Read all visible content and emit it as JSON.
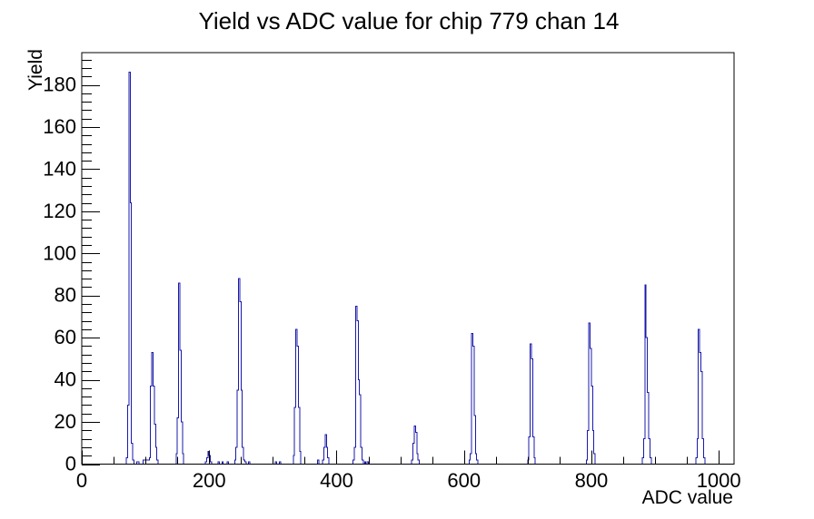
{
  "window": {
    "background": "#ffffff"
  },
  "chart_data": {
    "type": "bar",
    "style": "root-histogram-outline",
    "title": "Yield vs ADC value for chip 779 chan 14",
    "xlabel": "ADC value",
    "ylabel": "Yield",
    "line_color": "#1a1aab",
    "axis_color": "#000000",
    "grid": false,
    "legend": "none",
    "x_axis": {
      "min": 0,
      "max": 1024,
      "major_ticks": [
        0,
        200,
        400,
        600,
        800,
        1000
      ],
      "minor_step": 50
    },
    "y_axis": {
      "min": 0,
      "max": 195.3,
      "major_ticks": [
        0,
        20,
        40,
        60,
        80,
        100,
        120,
        140,
        160,
        180
      ],
      "minor_step": 4
    },
    "bin_width": 2,
    "bins": [
      [
        70,
        3
      ],
      [
        72,
        28
      ],
      [
        74,
        186
      ],
      [
        76,
        124
      ],
      [
        78,
        10
      ],
      [
        80,
        2
      ],
      [
        86,
        1
      ],
      [
        88,
        1
      ],
      [
        96,
        2
      ],
      [
        98,
        2
      ],
      [
        100,
        2
      ],
      [
        102,
        2
      ],
      [
        104,
        2
      ],
      [
        106,
        3
      ],
      [
        108,
        37
      ],
      [
        110,
        53
      ],
      [
        112,
        37
      ],
      [
        114,
        19
      ],
      [
        116,
        8
      ],
      [
        118,
        2
      ],
      [
        148,
        5
      ],
      [
        150,
        22
      ],
      [
        152,
        86
      ],
      [
        154,
        54
      ],
      [
        156,
        20
      ],
      [
        158,
        5
      ],
      [
        194,
        1
      ],
      [
        196,
        3
      ],
      [
        198,
        6
      ],
      [
        200,
        4
      ],
      [
        202,
        1
      ],
      [
        214,
        1
      ],
      [
        220,
        1
      ],
      [
        228,
        1
      ],
      [
        240,
        2
      ],
      [
        242,
        8
      ],
      [
        244,
        35
      ],
      [
        246,
        88
      ],
      [
        248,
        77
      ],
      [
        250,
        35
      ],
      [
        252,
        8
      ],
      [
        254,
        2
      ],
      [
        256,
        1
      ],
      [
        262,
        1
      ],
      [
        304,
        1
      ],
      [
        310,
        1
      ],
      [
        332,
        4
      ],
      [
        334,
        27
      ],
      [
        336,
        64
      ],
      [
        338,
        56
      ],
      [
        340,
        27
      ],
      [
        342,
        6
      ],
      [
        370,
        2
      ],
      [
        378,
        2
      ],
      [
        380,
        8
      ],
      [
        382,
        14
      ],
      [
        384,
        8
      ],
      [
        386,
        3
      ],
      [
        426,
        2
      ],
      [
        428,
        8
      ],
      [
        430,
        75
      ],
      [
        432,
        68
      ],
      [
        434,
        40
      ],
      [
        436,
        33
      ],
      [
        438,
        8
      ],
      [
        440,
        2
      ],
      [
        444,
        1
      ],
      [
        448,
        1
      ],
      [
        518,
        2
      ],
      [
        520,
        10
      ],
      [
        522,
        18
      ],
      [
        524,
        15
      ],
      [
        526,
        5
      ],
      [
        528,
        2
      ],
      [
        608,
        2
      ],
      [
        610,
        5
      ],
      [
        612,
        62
      ],
      [
        614,
        56
      ],
      [
        616,
        23
      ],
      [
        618,
        5
      ],
      [
        620,
        2
      ],
      [
        700,
        2
      ],
      [
        702,
        13
      ],
      [
        704,
        57
      ],
      [
        706,
        50
      ],
      [
        708,
        13
      ],
      [
        710,
        3
      ],
      [
        792,
        2
      ],
      [
        794,
        16
      ],
      [
        796,
        67
      ],
      [
        798,
        55
      ],
      [
        800,
        37
      ],
      [
        802,
        16
      ],
      [
        804,
        5
      ],
      [
        880,
        3
      ],
      [
        882,
        12
      ],
      [
        884,
        85
      ],
      [
        886,
        60
      ],
      [
        888,
        34
      ],
      [
        890,
        12
      ],
      [
        892,
        3
      ],
      [
        964,
        3
      ],
      [
        966,
        12
      ],
      [
        968,
        64
      ],
      [
        970,
        53
      ],
      [
        972,
        44
      ],
      [
        974,
        12
      ],
      [
        976,
        3
      ]
    ]
  }
}
